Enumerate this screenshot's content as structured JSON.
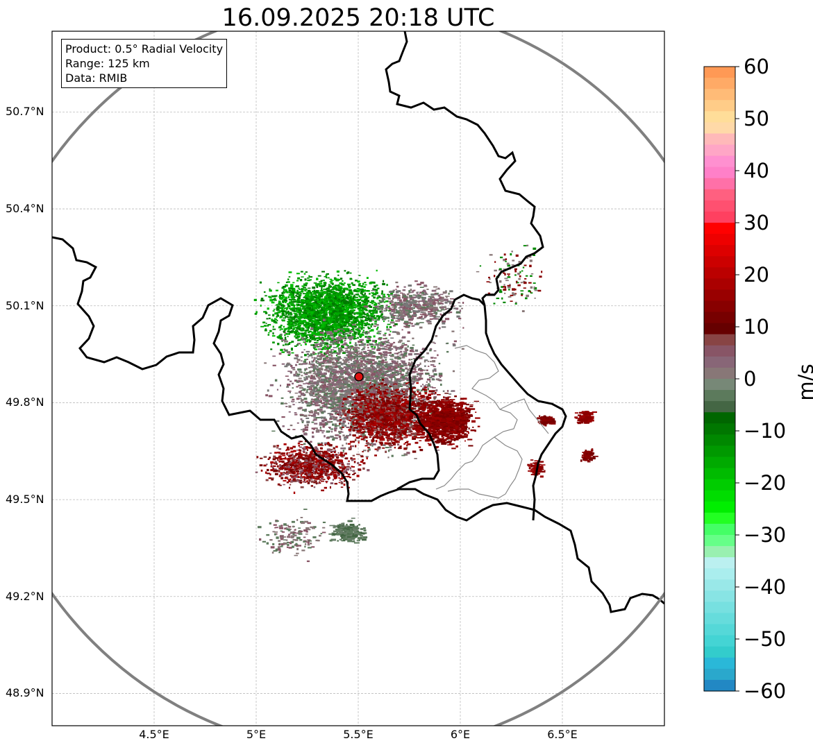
{
  "title": "16.09.2025 20:18 UTC",
  "info": {
    "product": "Product: 0.5° Radial Velocity",
    "range": "Range: 125 km",
    "source": "Data: RMIB"
  },
  "map": {
    "lon_range": [
      4.0,
      7.0
    ],
    "lat_range": [
      48.8,
      50.95
    ],
    "radar_site": {
      "lon": 5.5,
      "lat": 49.91,
      "color": "#dd1111"
    },
    "range_ring_km": 125,
    "lat_ticks": [
      {
        "value": 48.9,
        "label": "48.9°N"
      },
      {
        "value": 49.2,
        "label": "49.2°N"
      },
      {
        "value": 49.5,
        "label": "49.5°N"
      },
      {
        "value": 49.8,
        "label": "49.8°N"
      },
      {
        "value": 50.1,
        "label": "50.1°N"
      },
      {
        "value": 50.4,
        "label": "50.4°N"
      },
      {
        "value": 50.7,
        "label": "50.7°N"
      }
    ],
    "lon_ticks": [
      {
        "value": 4.5,
        "label": "4.5°E"
      },
      {
        "value": 5.0,
        "label": "5°E"
      },
      {
        "value": 5.5,
        "label": "5.5°E"
      },
      {
        "value": 6.0,
        "label": "6°E"
      },
      {
        "value": 6.5,
        "label": "6.5°E"
      }
    ]
  },
  "colorbar": {
    "unit": "m/s",
    "min": -60,
    "max": 60,
    "ticks": [
      {
        "value": 60,
        "label": "60"
      },
      {
        "value": 50,
        "label": "50"
      },
      {
        "value": 40,
        "label": "40"
      },
      {
        "value": 30,
        "label": "30"
      },
      {
        "value": 20,
        "label": "20"
      },
      {
        "value": 10,
        "label": "10"
      },
      {
        "value": 0,
        "label": "0"
      },
      {
        "value": -10,
        "label": "−10"
      },
      {
        "value": -20,
        "label": "−20"
      },
      {
        "value": -30,
        "label": "−30"
      },
      {
        "value": -40,
        "label": "−40"
      },
      {
        "value": -50,
        "label": "−50"
      },
      {
        "value": -60,
        "label": "−60"
      }
    ],
    "colors_top_to_bottom": [
      "#ff9955",
      "#ffaa66",
      "#ffbb77",
      "#ffcc88",
      "#ffdd99",
      "#ffd9a8",
      "#ffb9b9",
      "#ffa6c6",
      "#ff90d0",
      "#ff80c8",
      "#ff70a8",
      "#ff6080",
      "#ff5070",
      "#ff4060",
      "#ff0000",
      "#ee0000",
      "#dd0000",
      "#cc0000",
      "#bb0000",
      "#aa0000",
      "#990000",
      "#880000",
      "#770000",
      "#660000",
      "#884444",
      "#885566",
      "#886677",
      "#887777",
      "#778877",
      "#5c7a5c",
      "#446644",
      "#006600",
      "#007700",
      "#008800",
      "#009900",
      "#00aa00",
      "#00bb00",
      "#00cc00",
      "#00dd00",
      "#00ee00",
      "#22ff22",
      "#44ff66",
      "#66ff88",
      "#99f0b0",
      "#bbf0f0",
      "#aaeeee",
      "#99e8e8",
      "#88e4e4",
      "#77e0e0",
      "#66dcdc",
      "#55d8d8",
      "#44d4d4",
      "#33cccc",
      "#2ab8d8",
      "#2aa8cc",
      "#2288c4"
    ]
  }
}
